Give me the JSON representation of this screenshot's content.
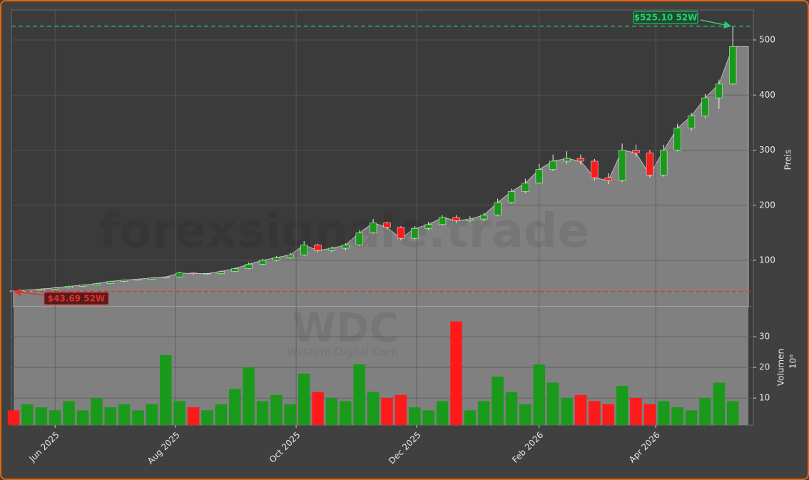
{
  "chart_data": [
    {
      "type": "candlestick",
      "x": [
        0,
        7,
        14,
        21,
        28,
        35,
        42,
        49,
        56,
        63,
        70,
        77,
        84,
        91,
        98,
        105,
        112,
        119,
        126,
        133,
        140,
        147,
        154,
        161,
        168,
        175,
        182,
        189,
        196,
        203,
        210,
        217,
        224,
        231,
        238,
        245,
        252,
        259,
        266,
        273,
        280,
        287,
        294,
        301,
        308,
        315,
        322,
        329,
        336,
        343,
        350,
        357,
        364
      ],
      "open": [
        44.5,
        44,
        46,
        48,
        50,
        53,
        55,
        58,
        62,
        64,
        66,
        68,
        70,
        77,
        76,
        76,
        80,
        85,
        93,
        100,
        105,
        110,
        128,
        118,
        122,
        128,
        150,
        168,
        160,
        140,
        158,
        165,
        178,
        172,
        175,
        182,
        205,
        225,
        240,
        265,
        280,
        285,
        280,
        250,
        245,
        300,
        295,
        255,
        300,
        340,
        362,
        395,
        420
      ],
      "high": [
        45.5,
        47,
        49,
        51,
        54,
        56,
        59,
        63,
        65,
        67,
        69,
        71,
        79,
        78,
        77,
        82,
        87,
        96,
        103,
        108,
        114,
        135,
        130,
        125,
        131,
        155,
        175,
        170,
        162,
        162,
        170,
        182,
        182,
        180,
        186,
        212,
        230,
        248,
        275,
        292,
        298,
        292,
        284,
        258,
        312,
        310,
        300,
        310,
        348,
        368,
        402,
        428,
        525.1
      ],
      "low": [
        43.69,
        43.5,
        45,
        47,
        49,
        52,
        54,
        57,
        61,
        63,
        65,
        67,
        69,
        74,
        74,
        75,
        79,
        84,
        91,
        98,
        103,
        108,
        115,
        115,
        118,
        126,
        148,
        156,
        136,
        138,
        155,
        163,
        168,
        170,
        172,
        180,
        203,
        222,
        238,
        262,
        275,
        274,
        245,
        238,
        242,
        288,
        250,
        252,
        298,
        335,
        358,
        375,
        418
      ],
      "close": [
        44,
        46,
        48,
        50,
        53,
        55,
        58,
        62,
        64,
        66,
        68,
        70,
        77,
        76,
        76,
        80,
        85,
        93,
        100,
        105,
        110,
        128,
        118,
        122,
        128,
        150,
        168,
        160,
        140,
        158,
        165,
        178,
        172,
        175,
        182,
        205,
        225,
        240,
        265,
        280,
        285,
        280,
        250,
        245,
        300,
        295,
        255,
        300,
        340,
        362,
        395,
        420,
        488
      ],
      "xlim": [
        -1.1,
        374.4
      ],
      "ylim": [
        15.9,
        554.4
      ],
      "yticks": [
        100,
        200,
        300,
        400,
        500
      ],
      "y_label": "Preis",
      "grid": true,
      "area_color": "#808080",
      "up_color": "#1a9a1a",
      "down_color": "#ff1a1a",
      "hlines": [
        {
          "value": 525.1,
          "label": "$525.10 52W",
          "color": "#2ecc71"
        },
        {
          "value": 43.69,
          "label": "$43.69 52W",
          "color": "#e03030"
        }
      ],
      "watermark": "forexsignale.trade",
      "symbol": "WDC",
      "company": "Western Digital Corp"
    },
    {
      "type": "bar",
      "values": [
        6,
        8,
        7,
        6,
        9,
        6,
        10,
        7,
        8,
        6,
        8,
        24,
        9,
        7,
        6,
        8,
        13,
        20,
        9,
        11,
        8,
        18,
        12,
        10,
        9,
        21,
        12,
        10,
        11,
        7,
        6,
        9,
        35,
        6,
        9,
        17,
        12,
        8,
        21,
        15,
        10,
        11,
        9,
        8,
        14,
        10,
        8,
        9,
        7,
        6,
        10,
        15,
        9
      ],
      "ylim": [
        1.2,
        39.8
      ],
      "yticks": [
        10,
        20,
        30
      ],
      "y_label": "Volumen",
      "y_offset_label": "10⁶",
      "xticks": [
        {
          "value": 21,
          "label": "Jun 2025"
        },
        {
          "value": 82,
          "label": "Aug 2025"
        },
        {
          "value": 143,
          "label": "Oct 2025"
        },
        {
          "value": 204,
          "label": "Dec 2025"
        },
        {
          "value": 266,
          "label": "Feb 2026"
        },
        {
          "value": 325,
          "label": "Apr 2026"
        }
      ]
    }
  ]
}
